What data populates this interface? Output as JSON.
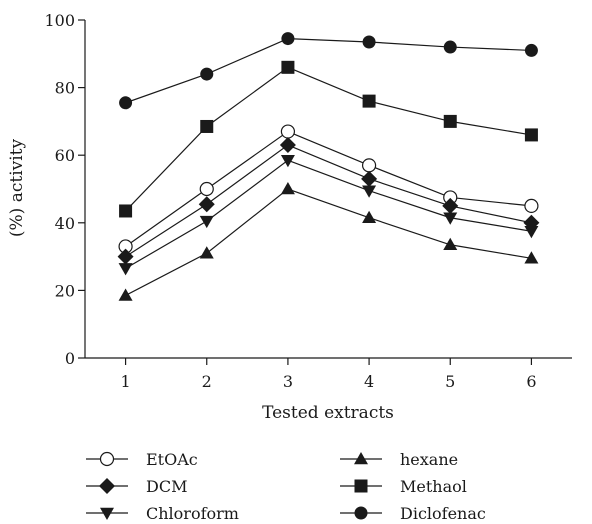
{
  "chart_data": {
    "type": "line",
    "xlabel": "Tested extracts",
    "ylabel": "(%) activity",
    "x": [
      1,
      2,
      3,
      4,
      5,
      6
    ],
    "xlim": [
      0.5,
      6.5
    ],
    "ylim": [
      0,
      100
    ],
    "yticks": [
      0,
      20,
      40,
      60,
      80,
      100
    ],
    "xticks": [
      1,
      2,
      3,
      4,
      5,
      6
    ],
    "grid": false,
    "legend_position": "bottom",
    "series": [
      {
        "name": "EtOAc",
        "marker": "circle-open",
        "values": [
          33,
          50,
          67,
          57,
          47.5,
          45
        ]
      },
      {
        "name": "DCM",
        "marker": "diamond",
        "values": [
          30,
          45.5,
          63,
          53,
          45,
          40
        ]
      },
      {
        "name": "Chloroform",
        "marker": "triangle-down",
        "values": [
          26.5,
          40.5,
          58.5,
          49.5,
          41.5,
          37.5
        ]
      },
      {
        "name": "hexane",
        "marker": "triangle-up",
        "values": [
          18.5,
          31,
          50,
          41.5,
          33.5,
          29.5
        ]
      },
      {
        "name": "Methaol",
        "marker": "square",
        "values": [
          43.5,
          68.5,
          86,
          76,
          70,
          66
        ]
      },
      {
        "name": "Diclofenac",
        "marker": "circle",
        "values": [
          75.5,
          84,
          94.5,
          93.5,
          92,
          91
        ]
      }
    ]
  }
}
